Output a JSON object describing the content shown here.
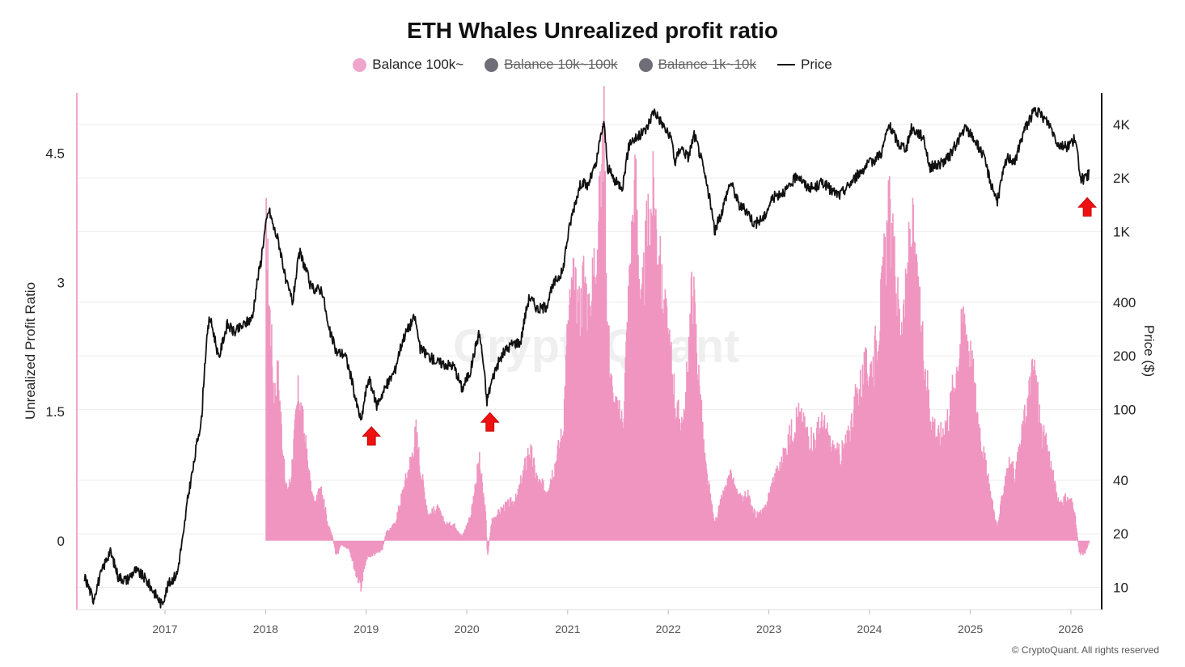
{
  "header": {
    "title": "ETH Whales Unrealized profit ratio"
  },
  "legend": [
    {
      "label": "Balance 100k~",
      "color": "#f0a6cc",
      "marker": "dot",
      "active": true
    },
    {
      "label": "Balance 10k~100k",
      "color": "#6e6d78",
      "marker": "dot",
      "active": false
    },
    {
      "label": "Balance 1k~10k",
      "color": "#6e6d78",
      "marker": "dot",
      "active": false
    },
    {
      "label": "Price",
      "color": "#111111",
      "marker": "line",
      "active": true
    }
  ],
  "watermark": "CryptoQuant",
  "credit": "© CryptoQuant. All rights reserved",
  "chart_data": {
    "type": "area",
    "title": "ETH Whales Unrealized profit ratio",
    "x_ticks": [
      "2017",
      "2018",
      "2019",
      "2020",
      "2021",
      "2022",
      "2023",
      "2024",
      "2025",
      "2026"
    ],
    "y_left": {
      "label": "Unrealized Profit Ratio",
      "ticks": [
        "0",
        "1.5",
        "3",
        "4.5"
      ],
      "range": [
        -0.8,
        5.2
      ]
    },
    "y_right": {
      "label": "Price ($)",
      "scale": "log",
      "ticks": [
        "10",
        "20",
        "40",
        "100",
        "200",
        "400",
        "1K",
        "2K",
        "4K"
      ],
      "tick_values": [
        10,
        20,
        40,
        100,
        200,
        400,
        1000,
        2000,
        4000
      ],
      "range": [
        7.5,
        6000
      ]
    },
    "colors": {
      "profit_fill": "#ee8fbd",
      "price_line": "#111111",
      "marker": "#ee1111",
      "grid": "#ececec"
    },
    "series": [
      {
        "name": "Balance 100k~",
        "axis": "left",
        "points": [
          [
            "2018-01-01",
            0
          ],
          [
            "2018-01-02",
            3.7
          ],
          [
            "2018-01-15",
            2.8
          ],
          [
            "2018-02-01",
            1.7
          ],
          [
            "2018-02-15",
            2.0
          ],
          [
            "2018-03-01",
            1.3
          ],
          [
            "2018-03-15",
            0.6
          ],
          [
            "2018-04-01",
            0.7
          ],
          [
            "2018-05-01",
            1.8
          ],
          [
            "2018-05-20",
            1.3
          ],
          [
            "2018-06-15",
            0.6
          ],
          [
            "2018-07-01",
            0.4
          ],
          [
            "2018-07-20",
            0.7
          ],
          [
            "2018-08-15",
            0.2
          ],
          [
            "2018-09-01",
            0.05
          ],
          [
            "2018-09-15",
            -0.2
          ],
          [
            "2018-10-01",
            -0.05
          ],
          [
            "2018-11-01",
            -0.1
          ],
          [
            "2018-11-25",
            -0.4
          ],
          [
            "2018-12-15",
            -0.55
          ],
          [
            "2019-01-01",
            -0.2
          ],
          [
            "2019-02-10",
            -0.15
          ],
          [
            "2019-03-01",
            -0.1
          ],
          [
            "2019-03-15",
            0.1
          ],
          [
            "2019-04-15",
            0.2
          ],
          [
            "2019-05-15",
            0.6
          ],
          [
            "2019-06-15",
            1.0
          ],
          [
            "2019-07-01",
            1.3
          ],
          [
            "2019-07-15",
            0.9
          ],
          [
            "2019-08-15",
            0.3
          ],
          [
            "2019-09-15",
            0.4
          ],
          [
            "2019-10-15",
            0.2
          ],
          [
            "2019-11-15",
            0.2
          ],
          [
            "2019-12-15",
            0.05
          ],
          [
            "2020-01-15",
            0.3
          ],
          [
            "2020-02-15",
            0.95
          ],
          [
            "2020-03-10",
            0.3
          ],
          [
            "2020-03-16",
            -0.2
          ],
          [
            "2020-04-01",
            0.25
          ],
          [
            "2020-05-15",
            0.4
          ],
          [
            "2020-07-01",
            0.5
          ],
          [
            "2020-08-15",
            1.1
          ],
          [
            "2020-09-15",
            0.7
          ],
          [
            "2020-10-15",
            0.6
          ],
          [
            "2020-11-15",
            0.9
          ],
          [
            "2020-12-15",
            1.3
          ],
          [
            "2021-01-01",
            2.5
          ],
          [
            "2021-01-20",
            3.0
          ],
          [
            "2021-02-15",
            2.7
          ],
          [
            "2021-03-01",
            3.2
          ],
          [
            "2021-03-20",
            2.6
          ],
          [
            "2021-04-10",
            3.4
          ],
          [
            "2021-05-01",
            4.0
          ],
          [
            "2021-05-12",
            5.0
          ],
          [
            "2021-05-25",
            2.6
          ],
          [
            "2021-06-15",
            1.6
          ],
          [
            "2021-07-20",
            1.4
          ],
          [
            "2021-08-15",
            3.2
          ],
          [
            "2021-09-05",
            4.3
          ],
          [
            "2021-09-25",
            2.6
          ],
          [
            "2021-10-15",
            3.6
          ],
          [
            "2021-11-10",
            4.1
          ],
          [
            "2021-12-10",
            2.9
          ],
          [
            "2022-01-10",
            2.2
          ],
          [
            "2022-02-01",
            1.5
          ],
          [
            "2022-03-01",
            1.4
          ],
          [
            "2022-03-30",
            3.1
          ],
          [
            "2022-04-20",
            2.0
          ],
          [
            "2022-05-15",
            0.9
          ],
          [
            "2022-06-18",
            0.2
          ],
          [
            "2022-07-15",
            0.5
          ],
          [
            "2022-08-15",
            0.75
          ],
          [
            "2022-09-15",
            0.5
          ],
          [
            "2022-10-15",
            0.55
          ],
          [
            "2022-11-15",
            0.3
          ],
          [
            "2022-12-15",
            0.35
          ],
          [
            "2023-01-15",
            0.7
          ],
          [
            "2023-02-15",
            0.9
          ],
          [
            "2023-03-15",
            1.2
          ],
          [
            "2023-04-15",
            1.5
          ],
          [
            "2023-05-15",
            1.3
          ],
          [
            "2023-06-15",
            1.2
          ],
          [
            "2023-07-15",
            1.4
          ],
          [
            "2023-08-15",
            1.1
          ],
          [
            "2023-09-15",
            1.0
          ],
          [
            "2023-10-15",
            1.2
          ],
          [
            "2023-11-15",
            1.7
          ],
          [
            "2023-12-15",
            2.0
          ],
          [
            "2024-01-15",
            2.1
          ],
          [
            "2024-02-15",
            2.9
          ],
          [
            "2024-03-12",
            3.9
          ],
          [
            "2024-04-01",
            3.2
          ],
          [
            "2024-04-20",
            2.6
          ],
          [
            "2024-05-10",
            2.8
          ],
          [
            "2024-06-01",
            3.8
          ],
          [
            "2024-06-20",
            3.0
          ],
          [
            "2024-07-15",
            2.3
          ],
          [
            "2024-08-10",
            1.5
          ],
          [
            "2024-09-10",
            1.2
          ],
          [
            "2024-10-15",
            1.5
          ],
          [
            "2024-11-15",
            2.1
          ],
          [
            "2024-12-10",
            2.7
          ],
          [
            "2025-01-01",
            2.2
          ],
          [
            "2025-02-01",
            1.4
          ],
          [
            "2025-03-01",
            0.8
          ],
          [
            "2025-04-09",
            0.15
          ],
          [
            "2025-05-15",
            0.9
          ],
          [
            "2025-06-15",
            0.8
          ],
          [
            "2025-07-15",
            1.4
          ],
          [
            "2025-08-20",
            2.1
          ],
          [
            "2025-09-15",
            1.3
          ],
          [
            "2025-10-15",
            1.0
          ],
          [
            "2025-11-15",
            0.45
          ],
          [
            "2025-12-15",
            0.5
          ],
          [
            "2026-01-10",
            0.45
          ],
          [
            "2026-02-01",
            -0.15
          ],
          [
            "2026-02-20",
            -0.15
          ],
          [
            "2026-03-10",
            0.0
          ]
        ]
      },
      {
        "name": "Price",
        "axis": "right",
        "points": [
          [
            "2016-03-15",
            11.5
          ],
          [
            "2016-04-15",
            8.5
          ],
          [
            "2016-05-15",
            12
          ],
          [
            "2016-06-15",
            16
          ],
          [
            "2016-07-15",
            11.5
          ],
          [
            "2016-08-15",
            11
          ],
          [
            "2016-09-15",
            12.5
          ],
          [
            "2016-10-15",
            11.5
          ],
          [
            "2016-11-15",
            9.8
          ],
          [
            "2016-12-20",
            8
          ],
          [
            "2017-01-15",
            10.5
          ],
          [
            "2017-02-15",
            12
          ],
          [
            "2017-03-10",
            20
          ],
          [
            "2017-04-15",
            48
          ],
          [
            "2017-05-15",
            90
          ],
          [
            "2017-06-12",
            330
          ],
          [
            "2017-07-15",
            190
          ],
          [
            "2017-08-15",
            300
          ],
          [
            "2017-09-10",
            270
          ],
          [
            "2017-10-15",
            300
          ],
          [
            "2017-11-15",
            330
          ],
          [
            "2017-12-15",
            680
          ],
          [
            "2018-01-13",
            1330
          ],
          [
            "2018-01-30",
            1050
          ],
          [
            "2018-02-15",
            900
          ],
          [
            "2018-03-15",
            520
          ],
          [
            "2018-04-10",
            400
          ],
          [
            "2018-05-05",
            760
          ],
          [
            "2018-06-15",
            480
          ],
          [
            "2018-07-25",
            470
          ],
          [
            "2018-08-15",
            290
          ],
          [
            "2018-09-15",
            210
          ],
          [
            "2018-10-15",
            205
          ],
          [
            "2018-11-25",
            110
          ],
          [
            "2018-12-14",
            85
          ],
          [
            "2019-01-10",
            150
          ],
          [
            "2019-02-07",
            105
          ],
          [
            "2019-03-15",
            135
          ],
          [
            "2019-04-15",
            165
          ],
          [
            "2019-05-15",
            250
          ],
          [
            "2019-06-26",
            330
          ],
          [
            "2019-07-15",
            220
          ],
          [
            "2019-08-15",
            200
          ],
          [
            "2019-09-15",
            185
          ],
          [
            "2019-10-15",
            180
          ],
          [
            "2019-11-15",
            175
          ],
          [
            "2019-12-15",
            130
          ],
          [
            "2020-01-15",
            165
          ],
          [
            "2020-02-15",
            270
          ],
          [
            "2020-03-13",
            110
          ],
          [
            "2020-04-15",
            170
          ],
          [
            "2020-05-15",
            210
          ],
          [
            "2020-06-15",
            235
          ],
          [
            "2020-07-15",
            240
          ],
          [
            "2020-08-15",
            430
          ],
          [
            "2020-09-15",
            365
          ],
          [
            "2020-10-15",
            380
          ],
          [
            "2020-11-15",
            520
          ],
          [
            "2020-12-15",
            600
          ],
          [
            "2021-01-15",
            1200
          ],
          [
            "2021-02-20",
            1900
          ],
          [
            "2021-03-15",
            1800
          ],
          [
            "2021-04-15",
            2400
          ],
          [
            "2021-05-12",
            4100
          ],
          [
            "2021-05-25",
            2300
          ],
          [
            "2021-06-22",
            1900
          ],
          [
            "2021-07-20",
            1800
          ],
          [
            "2021-08-15",
            3200
          ],
          [
            "2021-09-15",
            3400
          ],
          [
            "2021-10-15",
            3800
          ],
          [
            "2021-11-10",
            4800
          ],
          [
            "2021-12-15",
            3900
          ],
          [
            "2022-01-15",
            3200
          ],
          [
            "2022-01-25",
            2400
          ],
          [
            "2022-02-15",
            3000
          ],
          [
            "2022-03-15",
            2600
          ],
          [
            "2022-04-05",
            3500
          ],
          [
            "2022-05-15",
            2000
          ],
          [
            "2022-06-18",
            990
          ],
          [
            "2022-07-15",
            1300
          ],
          [
            "2022-08-15",
            1900
          ],
          [
            "2022-09-15",
            1400
          ],
          [
            "2022-10-15",
            1300
          ],
          [
            "2022-11-09",
            1100
          ],
          [
            "2022-12-15",
            1200
          ],
          [
            "2023-01-15",
            1550
          ],
          [
            "2023-02-15",
            1650
          ],
          [
            "2023-03-15",
            1750
          ],
          [
            "2023-04-15",
            2100
          ],
          [
            "2023-05-15",
            1800
          ],
          [
            "2023-06-15",
            1750
          ],
          [
            "2023-07-15",
            1900
          ],
          [
            "2023-08-15",
            1700
          ],
          [
            "2023-09-15",
            1600
          ],
          [
            "2023-10-15",
            1800
          ],
          [
            "2023-11-15",
            2050
          ],
          [
            "2023-12-15",
            2300
          ],
          [
            "2024-01-15",
            2500
          ],
          [
            "2024-02-15",
            2800
          ],
          [
            "2024-03-12",
            3950
          ],
          [
            "2024-04-15",
            3100
          ],
          [
            "2024-05-15",
            2950
          ],
          [
            "2024-06-01",
            3800
          ],
          [
            "2024-07-15",
            3400
          ],
          [
            "2024-08-05",
            2300
          ],
          [
            "2024-09-15",
            2400
          ],
          [
            "2024-10-15",
            2600
          ],
          [
            "2024-11-15",
            3200
          ],
          [
            "2024-12-15",
            3800
          ],
          [
            "2025-01-15",
            3300
          ],
          [
            "2025-02-15",
            2700
          ],
          [
            "2025-03-15",
            1900
          ],
          [
            "2025-04-09",
            1470
          ],
          [
            "2025-05-15",
            2600
          ],
          [
            "2025-06-15",
            2500
          ],
          [
            "2025-07-15",
            3700
          ],
          [
            "2025-08-22",
            4800
          ],
          [
            "2025-09-15",
            4500
          ],
          [
            "2025-10-15",
            4000
          ],
          [
            "2025-11-15",
            3100
          ],
          [
            "2025-12-15",
            3000
          ],
          [
            "2026-01-15",
            3300
          ],
          [
            "2026-02-05",
            2000
          ],
          [
            "2026-02-20",
            1950
          ],
          [
            "2026-03-10",
            2150
          ]
        ]
      }
    ],
    "markers": [
      {
        "date": "2019-01-20",
        "value": 80,
        "axis": "right",
        "shape": "up-arrow"
      },
      {
        "date": "2020-03-25",
        "value": 96,
        "axis": "right",
        "shape": "up-arrow"
      },
      {
        "date": "2026-03-01",
        "value": 1550,
        "axis": "right",
        "shape": "up-arrow"
      }
    ]
  }
}
